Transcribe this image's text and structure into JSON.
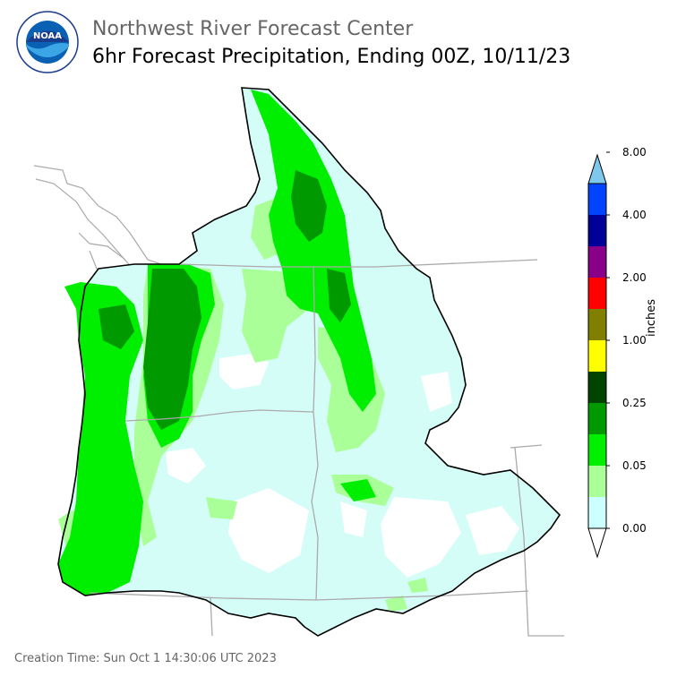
{
  "header": {
    "title": "Northwest River Forecast Center",
    "subtitle": "6hr Forecast Precipitation, Ending 00Z, 10/11/23"
  },
  "logo": {
    "name": "noaa-logo",
    "text": "NOAA",
    "ring_text": "NATIONAL OCEANIC AND ATMOSPHERIC ADMINISTRATION · U.S. DEPARTMENT OF COMMERCE"
  },
  "legend": {
    "units": "inches",
    "labels": [
      "0.00",
      "0.05",
      "0.25",
      "1.00",
      "2.00",
      "4.00",
      "8.00"
    ],
    "colors": [
      "#ffffff",
      "#ccffff",
      "#aaff99",
      "#00ee00",
      "#009900",
      "#004400",
      "#ffff00",
      "#807f00",
      "#ff0000",
      "#880088",
      "#000099",
      "#0044ff",
      "#7ec8ee"
    ]
  },
  "map_colors": {
    "background": "#ffffff",
    "very_light": "#d5fdf8",
    "light_green": "#aaff99",
    "green": "#00ee00",
    "dark_green": "#009900",
    "basin_border": "#000000",
    "state_border": "#aaaaaa"
  },
  "footer": {
    "creation_time": "Creation Time: Sun Oct 1 14:30:06 UTC 2023"
  }
}
